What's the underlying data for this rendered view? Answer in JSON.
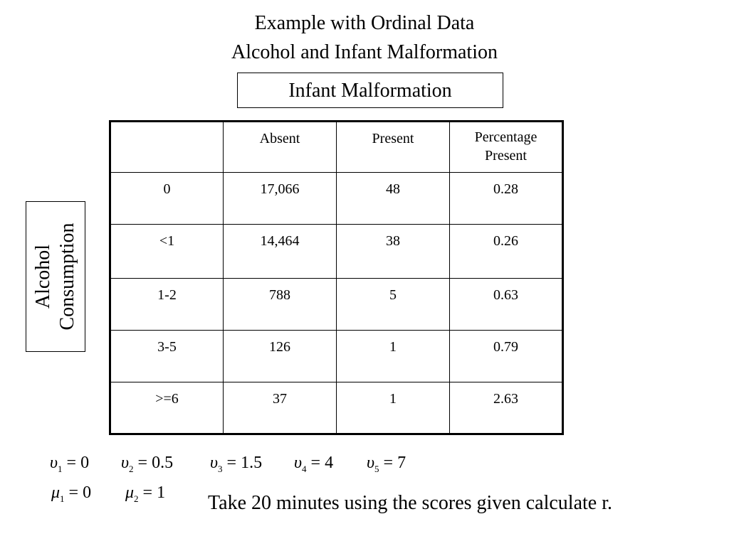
{
  "title_line1": "Example with Ordinal Data",
  "title_line2": "Alcohol and Infant Malformation",
  "column_group_label": "Infant Malformation",
  "row_group_label_line1": "Alcohol",
  "row_group_label_line2": "Consumption",
  "table": {
    "headers": [
      "",
      "Absent",
      "Present",
      "Percentage Present"
    ],
    "rows": [
      [
        "0",
        "17,066",
        "48",
        "0.28"
      ],
      [
        "<1",
        "14,464",
        "38",
        "0.26"
      ],
      [
        "1-2",
        "788",
        "5",
        "0.63"
      ],
      [
        "3-5",
        "126",
        "1",
        "0.79"
      ],
      [
        ">=6",
        "37",
        "1",
        "2.63"
      ]
    ]
  },
  "row_scores": [
    {
      "symbol": "υ",
      "index": "1",
      "value": "0"
    },
    {
      "symbol": "υ",
      "index": "2",
      "value": "0.5"
    },
    {
      "symbol": "υ",
      "index": "3",
      "value": "1.5"
    },
    {
      "symbol": "υ",
      "index": "4",
      "value": "4"
    },
    {
      "symbol": "υ",
      "index": "5",
      "value": "7"
    }
  ],
  "column_scores": [
    {
      "symbol": "μ",
      "index": "1",
      "value": "0"
    },
    {
      "symbol": "μ",
      "index": "2",
      "value": "1"
    }
  ],
  "task_text": "Take 20 minutes using the scores given calculate r."
}
